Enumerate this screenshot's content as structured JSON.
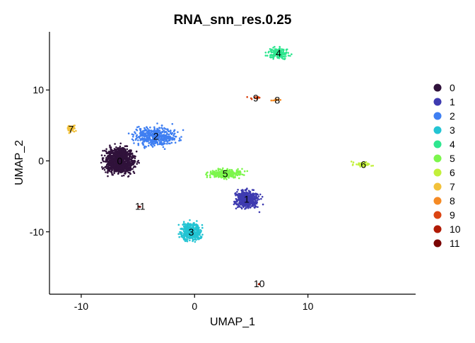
{
  "chart_data": {
    "type": "scatter",
    "title": "RNA_snn_res.0.25",
    "xlabel": "UMAP_1",
    "ylabel": "UMAP_2",
    "xlim": [
      -12.8,
      19.5
    ],
    "ylim": [
      -18.8,
      18.2
    ],
    "xticks": [
      {
        "value": -10,
        "label": "-10"
      },
      {
        "value": 0,
        "label": "0"
      },
      {
        "value": 10,
        "label": "10"
      }
    ],
    "yticks": [
      {
        "value": -10,
        "label": "-10"
      },
      {
        "value": 0,
        "label": "0"
      },
      {
        "value": 10,
        "label": "10"
      }
    ],
    "grid": false,
    "legend_position": "right",
    "series": [
      {
        "name": "0",
        "color": "#30123b"
      },
      {
        "name": "1",
        "color": "#3e3bb0"
      },
      {
        "name": "2",
        "color": "#3f7ff2"
      },
      {
        "name": "3",
        "color": "#23c4d3"
      },
      {
        "name": "4",
        "color": "#2ee68f"
      },
      {
        "name": "5",
        "color": "#7cf64c"
      },
      {
        "name": "6",
        "color": "#c2f03a"
      },
      {
        "name": "7",
        "color": "#f2c13a"
      },
      {
        "name": "8",
        "color": "#f58a24"
      },
      {
        "name": "9",
        "color": "#db4412"
      },
      {
        "name": "10",
        "color": "#b01a04"
      },
      {
        "name": "11",
        "color": "#7a0403"
      }
    ],
    "clusters": [
      {
        "label": "0",
        "x": -6.6,
        "y": 0.0,
        "sx": 1.0,
        "sy": 1.4,
        "n": 1200
      },
      {
        "label": "1",
        "x": 4.6,
        "y": -5.4,
        "sx": 0.8,
        "sy": 1.0,
        "n": 500
      },
      {
        "label": "2",
        "x": -3.4,
        "y": 3.5,
        "sx": 1.5,
        "sy": 1.1,
        "n": 450
      },
      {
        "label": "3",
        "x": -0.3,
        "y": -10.0,
        "sx": 0.7,
        "sy": 1.0,
        "n": 400
      },
      {
        "label": "4",
        "x": 7.4,
        "y": 15.2,
        "sx": 0.7,
        "sy": 0.6,
        "n": 180
      },
      {
        "label": "5",
        "x": 2.7,
        "y": -1.8,
        "sx": 1.2,
        "sy": 0.5,
        "n": 260
      },
      {
        "label": "6",
        "x": 14.9,
        "y": -0.5,
        "sx": 0.8,
        "sy": 0.3,
        "n": 40
      },
      {
        "label": "7",
        "x": -10.9,
        "y": 4.5,
        "sx": 0.3,
        "sy": 0.4,
        "n": 40
      },
      {
        "label": "8",
        "x": 7.3,
        "y": 8.6,
        "sx": 0.4,
        "sy": 0.1,
        "n": 12
      },
      {
        "label": "9",
        "x": 5.4,
        "y": 8.9,
        "sx": 0.5,
        "sy": 0.15,
        "n": 12
      },
      {
        "label": "10",
        "x": 5.7,
        "y": -17.3,
        "sx": 0.1,
        "sy": 0.1,
        "n": 3
      },
      {
        "label": "11",
        "x": -4.8,
        "y": -6.4,
        "sx": 0.1,
        "sy": 0.1,
        "n": 3
      }
    ]
  }
}
